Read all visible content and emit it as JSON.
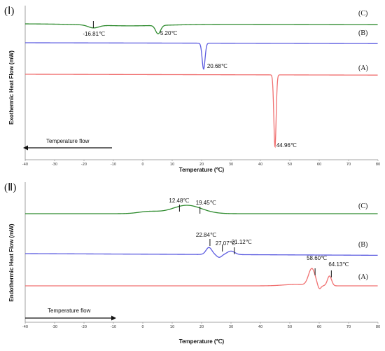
{
  "chart_data": [
    {
      "type": "line",
      "panel_label": "(Ⅰ)",
      "ylabel": "Exothermic Heat Flow (mW)",
      "xlabel": "Temperature (℃)",
      "xlim": [
        -40,
        80
      ],
      "x_ticks": [
        "-40",
        "-30",
        "-20",
        "-10",
        "0",
        "10",
        "20",
        "30",
        "40",
        "50",
        "60",
        "70",
        "80"
      ],
      "flow_label": "Temperature flow",
      "flow_direction": "left",
      "series": [
        {
          "name": "(C)",
          "color": "#2e8b2e",
          "baseline": 0,
          "peaks": [
            {
              "x": -16.81,
              "depth": 4,
              "width": 2.5,
              "label": "-16.81℃",
              "marker": true
            },
            {
              "x": 5.2,
              "depth": 12,
              "width": 1.2,
              "label": "5.20℃",
              "marker": false
            }
          ]
        },
        {
          "name": "(B)",
          "color": "#5b5be0",
          "baseline": 0,
          "peaks": [
            {
              "x": 20.68,
              "depth": 37,
              "width": 0.7,
              "label": "20.68℃",
              "marker": false
            }
          ]
        },
        {
          "name": "(A)",
          "color": "#f07070",
          "baseline": 0,
          "peaks": [
            {
              "x": 44.96,
              "depth": 103,
              "width": 0.55,
              "label": "44.96℃",
              "marker": false
            }
          ]
        }
      ]
    },
    {
      "type": "line",
      "panel_label": "(Ⅱ)",
      "ylabel": "Endothermic Heat Flow (mW)",
      "xlabel": "Temperature (℃)",
      "xlim": [
        -40,
        80
      ],
      "x_ticks": [
        "-40",
        "-30",
        "-20",
        "-10",
        "0",
        "10",
        "20",
        "30",
        "40",
        "50",
        "60",
        "70",
        "80"
      ],
      "flow_label": "Temperature flow",
      "flow_direction": "right",
      "series": [
        {
          "name": "(C)",
          "color": "#2e8b2e",
          "peaks": [
            {
              "x": 12.48,
              "label": "12.48℃"
            },
            {
              "x": 19.45,
              "label": "19.45℃"
            }
          ]
        },
        {
          "name": "(B)",
          "color": "#5b5be0",
          "peaks": [
            {
              "x": 22.84,
              "label": "22.84℃"
            },
            {
              "x": 27.07,
              "label": "27.07℃"
            },
            {
              "x": 31.12,
              "label": "31.12℃"
            }
          ]
        },
        {
          "name": "(A)",
          "color": "#f07070",
          "peaks": [
            {
              "x": 58.6,
              "label": "58.60℃"
            },
            {
              "x": 64.13,
              "label": "64.13℃"
            }
          ]
        }
      ]
    }
  ]
}
